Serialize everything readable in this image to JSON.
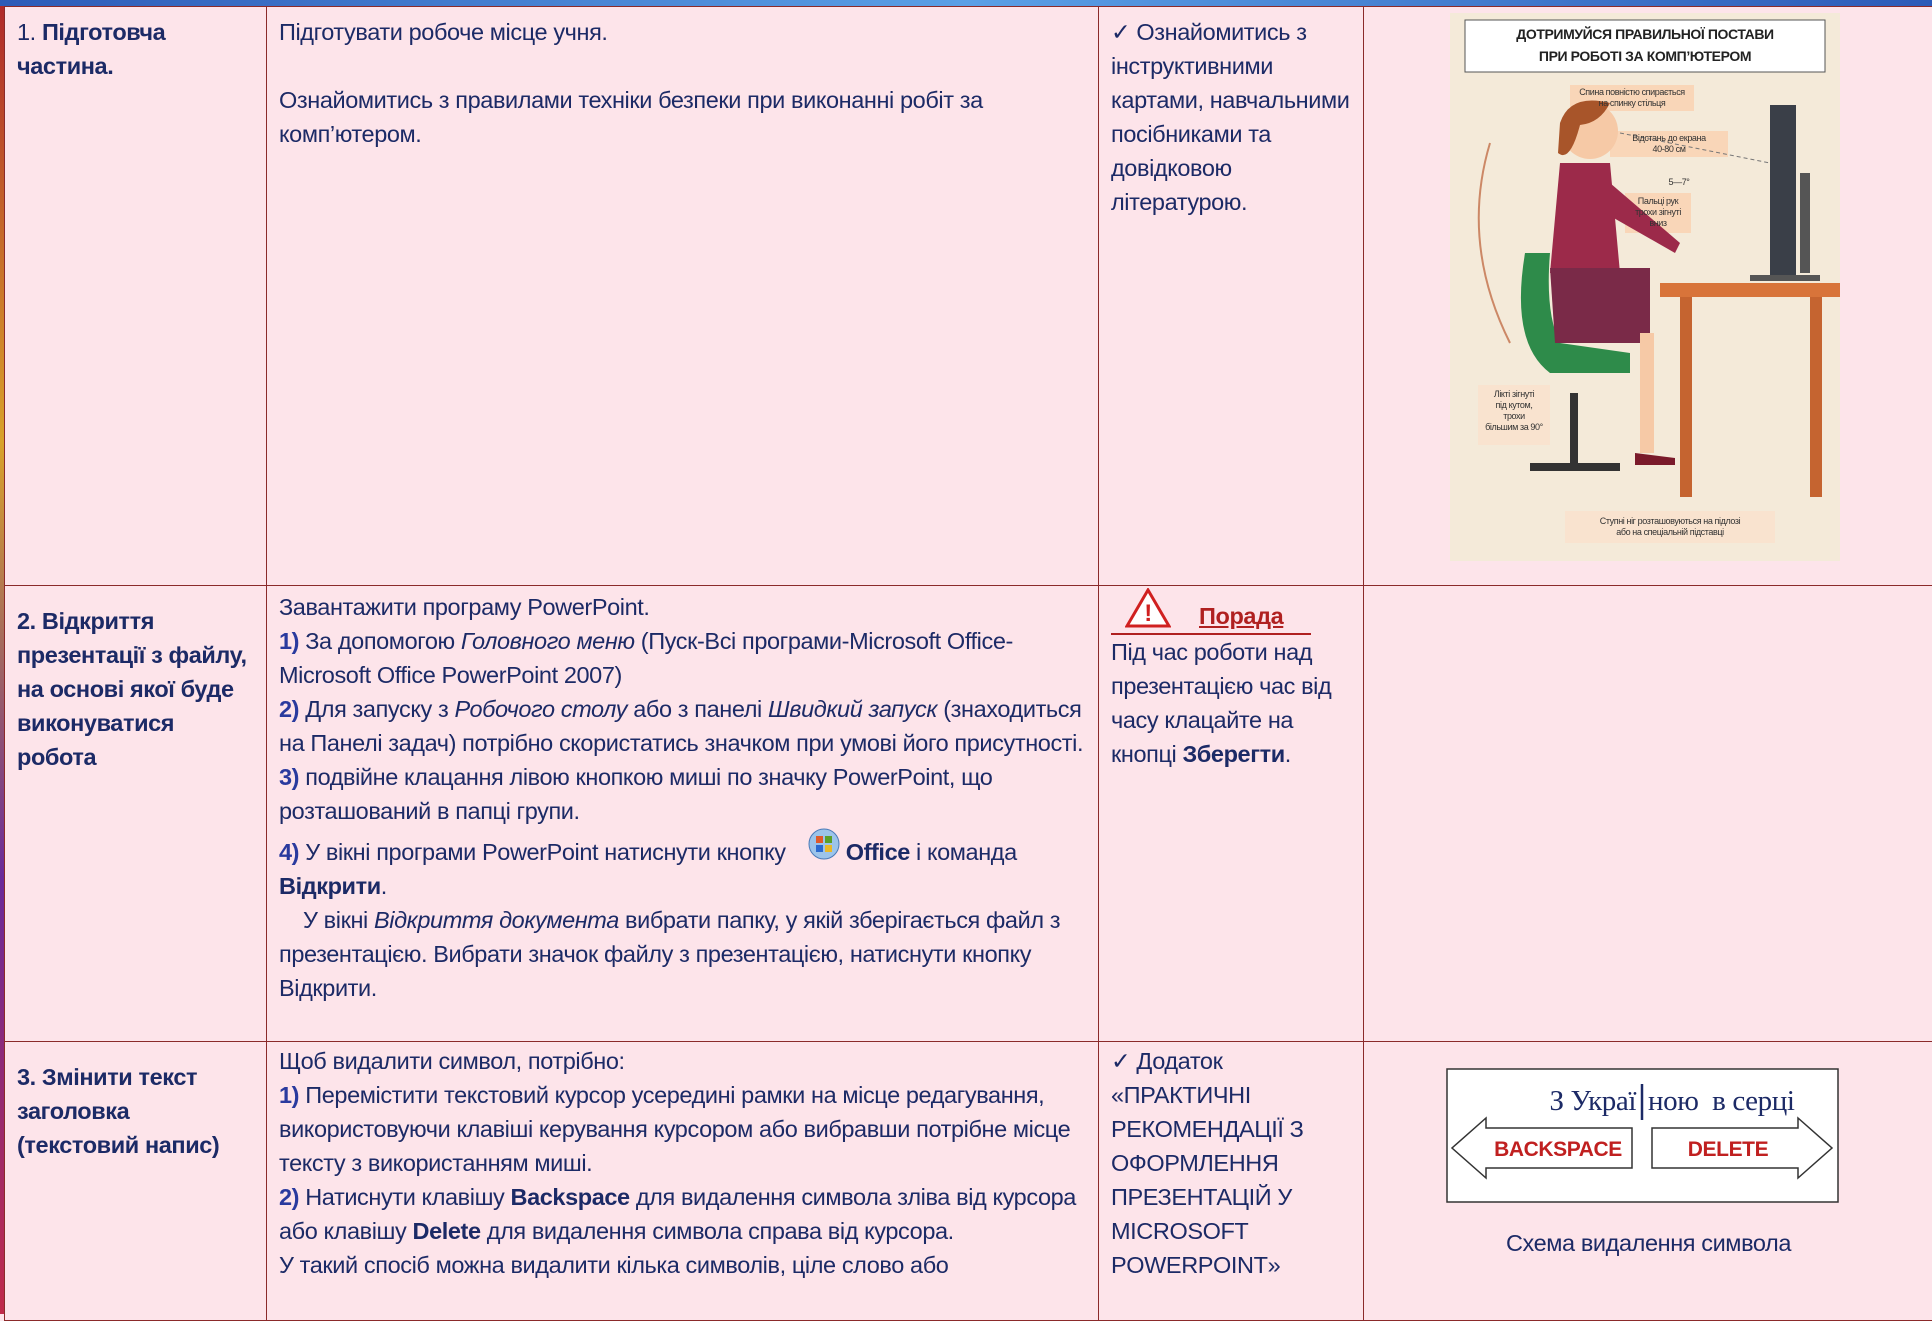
{
  "table": {
    "rows": [
      {
        "stage": [
          "1. ",
          "Підготовча частина."
        ],
        "task": [
          [
            "Підготувати робоче місце учня."
          ],
          [
            "Ознайомитись з правилами техніки безпеки при виконанні робіт за комп’ютером."
          ]
        ],
        "notes": [
          "✓ Ознайомитись з інструктивними картами, навчальними посібниками та довідковою літературою."
        ],
        "poster": {
          "title": [
            "ДОТРИМУЙСЯ ПРАВИЛЬНОЇ ПОСТАВИ",
            "ПРИ РОБОТІ ЗА КОМП’ЮТЕРОМ"
          ],
          "labels": [
            [
              "Спина повністю спирається",
              "на спинку стільця"
            ],
            [
              "Відстань до екрана",
              "40-80 см"
            ],
            [
              "5—7°"
            ],
            [
              "Пальці рук",
              "трохи зігнуті",
              "вниз"
            ],
            [
              "Лікті зігнуті",
              "під кутом,",
              "трохи",
              "більшим за 90°"
            ],
            [
              "Ступні ніг розташовуються на підлозі",
              "або на спеціальній підставці"
            ]
          ]
        }
      },
      {
        "stage": [
          "2.  Відкриття презентації з файлу, на основі якої буде виконуватися робота"
        ],
        "task": [
          [
            "Завантажити програму  PowerPoint."
          ],
          [
            "1)",
            " За допомогою ",
            "Головного меню",
            " (Пуск-Всі програми-Microsoft Office-Microsoft Office PowerPoint 2007)"
          ],
          [
            "2)",
            " Для запуску з ",
            "Робочого столу",
            " або з панелі ",
            "Швидкий запуск",
            " (знаходиться на Панелі задач) потрібно скористатись значком при умові його присутності."
          ],
          [
            "3)",
            " подвійне клацання лівою кнопкою миші по значку PowerPoint, що розташований в папці групи."
          ],
          [
            "4)",
            " У вікні програми PowerPoint натиснути кнопку ",
            "Office",
            " і команда ",
            "Відкрити",
            "."
          ],
          [
            "У вікні ",
            "Відкриття документа",
            " вибрати папку, у якій зберігається файл з презентацією. Вибрати значок файлу з презентацією, натиснути кнопку Відкрити."
          ]
        ],
        "notes": [
          "Порада",
          "Під час роботи над презентацією час від часу клацайте на кнопці ",
          "Зберегти",
          "."
        ]
      },
      {
        "stage": [
          "3.  Змінити текст заголовка (текстовий напис)"
        ],
        "task": [
          [
            "Щоб видалити символ, потрібно:"
          ],
          [
            "1)",
            " Перемістити текстовий курсор усередині рамки на місце редагування, використовуючи клавіші керування курсором або вибравши потрібне місце тексту з використанням миші."
          ],
          [
            "2)",
            " Натиснути клавішу ",
            "Backspace",
            " для видалення символа зліва від курсора або клавішу ",
            "Delete",
            " для видалення символа справа від курсора."
          ],
          [
            "У такий спосіб можна видалити кілька символів, ціле слово або"
          ]
        ],
        "notes": [
          "✓ Додаток «ПРАКТИЧНІ РЕКОМЕНДАЦІЇ З ОФОРМЛЕННЯ ПРЕЗЕНТАЦІЙ У MICROSOFT POWERPOINT»"
        ],
        "diagram": {
          "left": "З Украї",
          "right": "ною  в серці",
          "backspace": "BACKSPACE",
          "delete": "DELETE",
          "caption": "Схема видалення символа"
        }
      }
    ]
  }
}
